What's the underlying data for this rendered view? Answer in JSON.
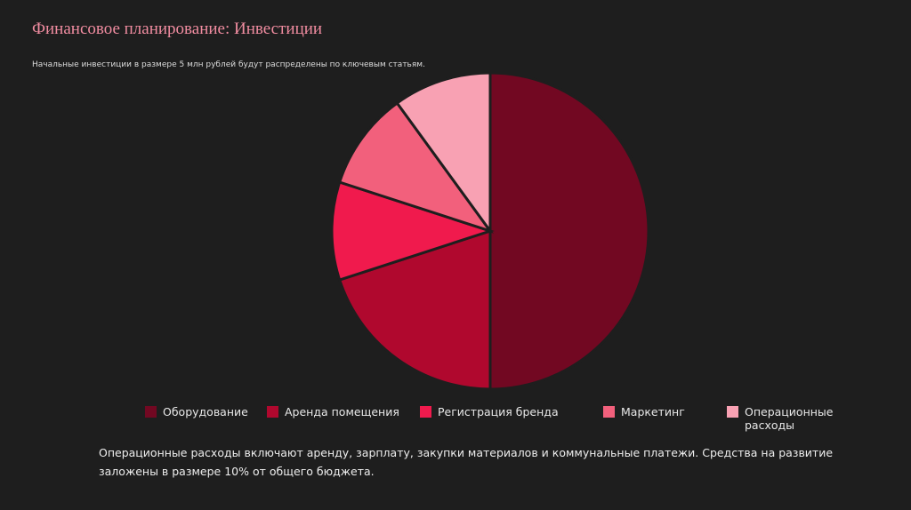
{
  "chart_data": {
    "type": "pie",
    "title": "Финансовое планирование: Инвестиции",
    "subtitle": "Начальные инвестиции в размере 5 млн рублей будут распределены по ключевым статьям.",
    "categories": [
      "Оборудование",
      "Аренда помещения",
      "Регистрация бренда",
      "Маркетинг",
      "Операционные расходы"
    ],
    "values": [
      50,
      20,
      10,
      10,
      10
    ],
    "colors": [
      "#720822",
      "#b0082e",
      "#f01a4d",
      "#f2607c",
      "#f8a1b3"
    ],
    "legend": "bottom",
    "annotation": "Операционные расходы включают аренду, зарплату, закупки материалов и коммунальные платежи. Средства на развитие заложены в размере 10% от общего бюджета."
  }
}
